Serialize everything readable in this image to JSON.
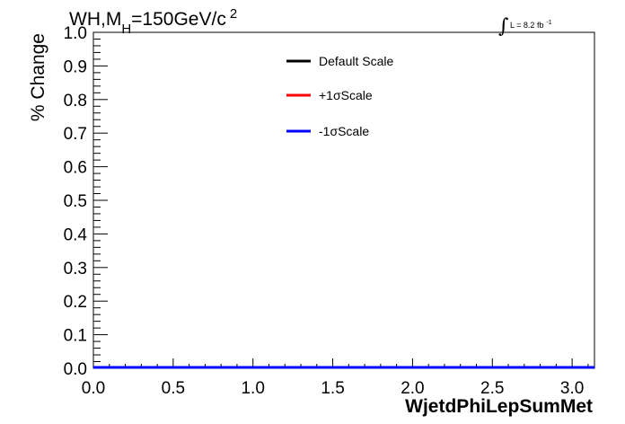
{
  "title": {
    "prefix": "WH,M",
    "sub": "H",
    "rest": "=150GeV/c",
    "sup": "2"
  },
  "lumi": {
    "text": "L = 8.2 fb",
    "sup": "-1"
  },
  "chart_data": {
    "type": "line",
    "xlabel": "WjetdPhiLepSumMet",
    "ylabel": "% Change",
    "xlim": [
      0,
      3.14
    ],
    "ylim": [
      0,
      1
    ],
    "x_ticks": [
      "0.0",
      "0.5",
      "1.0",
      "1.5",
      "2.0",
      "2.5",
      "3.0"
    ],
    "x_tick_values": [
      0,
      0.5,
      1.0,
      1.5,
      2.0,
      2.5,
      3.0
    ],
    "y_ticks": [
      "0.0",
      "0.1",
      "0.2",
      "0.3",
      "0.4",
      "0.5",
      "0.6",
      "0.7",
      "0.8",
      "0.9",
      "1.0"
    ],
    "y_tick_values": [
      0,
      0.1,
      0.2,
      0.3,
      0.4,
      0.5,
      0.6,
      0.7,
      0.8,
      0.9,
      1.0
    ],
    "grid": false,
    "legend_position": "top-center",
    "series": [
      {
        "name": "Default Scale",
        "legend_label": "Default Scale",
        "color": "#000000",
        "x": [
          0,
          3.14
        ],
        "y": [
          0,
          0
        ]
      },
      {
        "name": "+1σScale",
        "legend_label": "+1σScale",
        "color": "#ff0000",
        "x": [
          0,
          3.14
        ],
        "y": [
          0,
          0
        ]
      },
      {
        "name": "-1σScale",
        "legend_label": "-1σScale",
        "color": "#0000ff",
        "x": [
          0,
          3.14
        ],
        "y": [
          0,
          0
        ]
      }
    ]
  }
}
